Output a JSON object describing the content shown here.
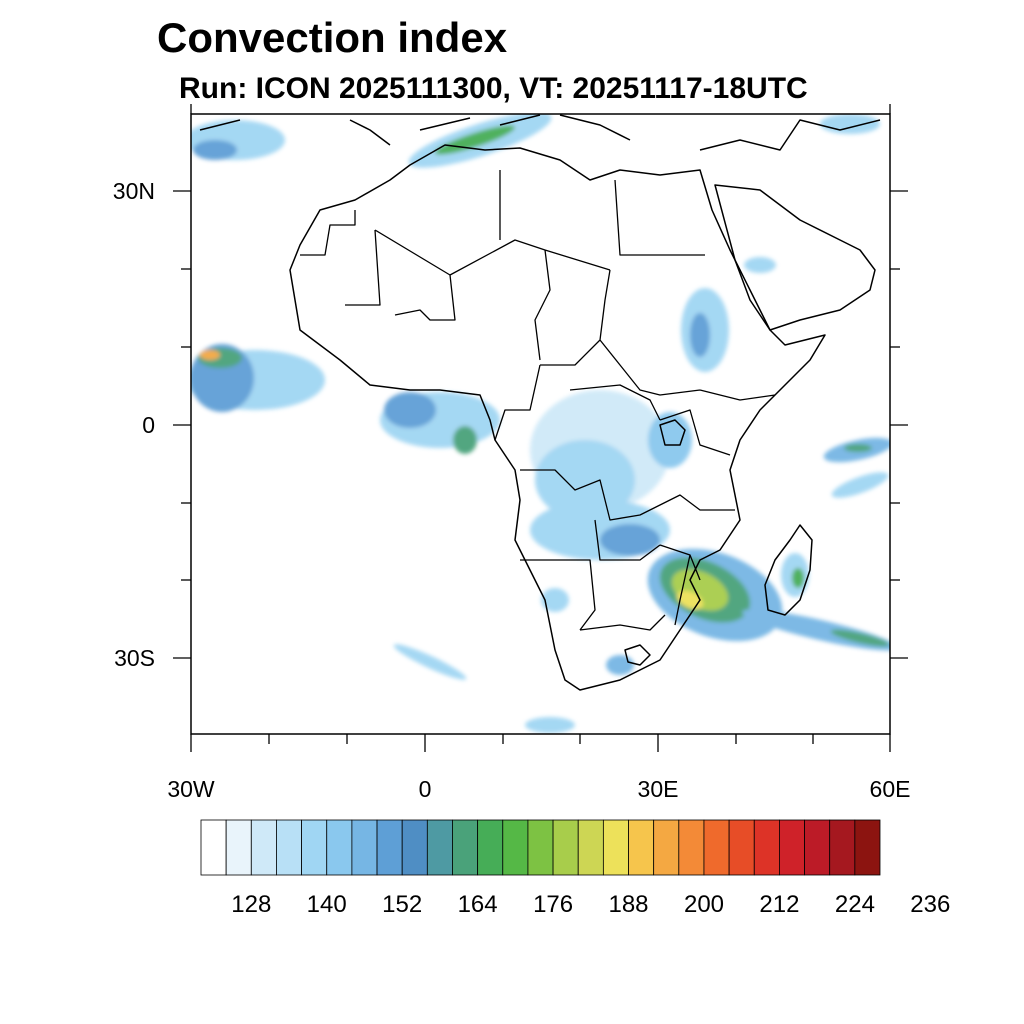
{
  "title": "Convection index",
  "subtitle": "Run: ICON 2025111300,  VT: 20251117-18UTC",
  "axes": {
    "lon_ticks": [
      "30W",
      "0",
      "30E",
      "60E"
    ],
    "lat_ticks": [
      "30N",
      "0",
      "30S"
    ]
  },
  "colorbar": {
    "labels": [
      "128",
      "140",
      "152",
      "164",
      "176",
      "188",
      "200",
      "212",
      "224",
      "236"
    ],
    "colors": [
      "#ffffff",
      "#e9f4fb",
      "#cfe9f8",
      "#b8e0f6",
      "#a0d6f3",
      "#8ac8ee",
      "#76b6e4",
      "#5e9fd6",
      "#4f8ec4",
      "#4e9aa3",
      "#4aa27a",
      "#46ad57",
      "#55b846",
      "#7dc243",
      "#a8cd4b",
      "#cdd654",
      "#ede15a",
      "#f6c54c",
      "#f4a842",
      "#f38a37",
      "#ef6a2c",
      "#e74d27",
      "#dd3327",
      "#cf2229",
      "#bc1b27",
      "#a5181f",
      "#8c1410"
    ]
  },
  "colors": {
    "light_blue": "#a0d6f3",
    "mid_blue": "#5e9fd6",
    "teal": "#4e9aa3",
    "green": "#46ad57",
    "yellow_green": "#cdd654",
    "orange": "#f4a842",
    "border": "#000000"
  }
}
